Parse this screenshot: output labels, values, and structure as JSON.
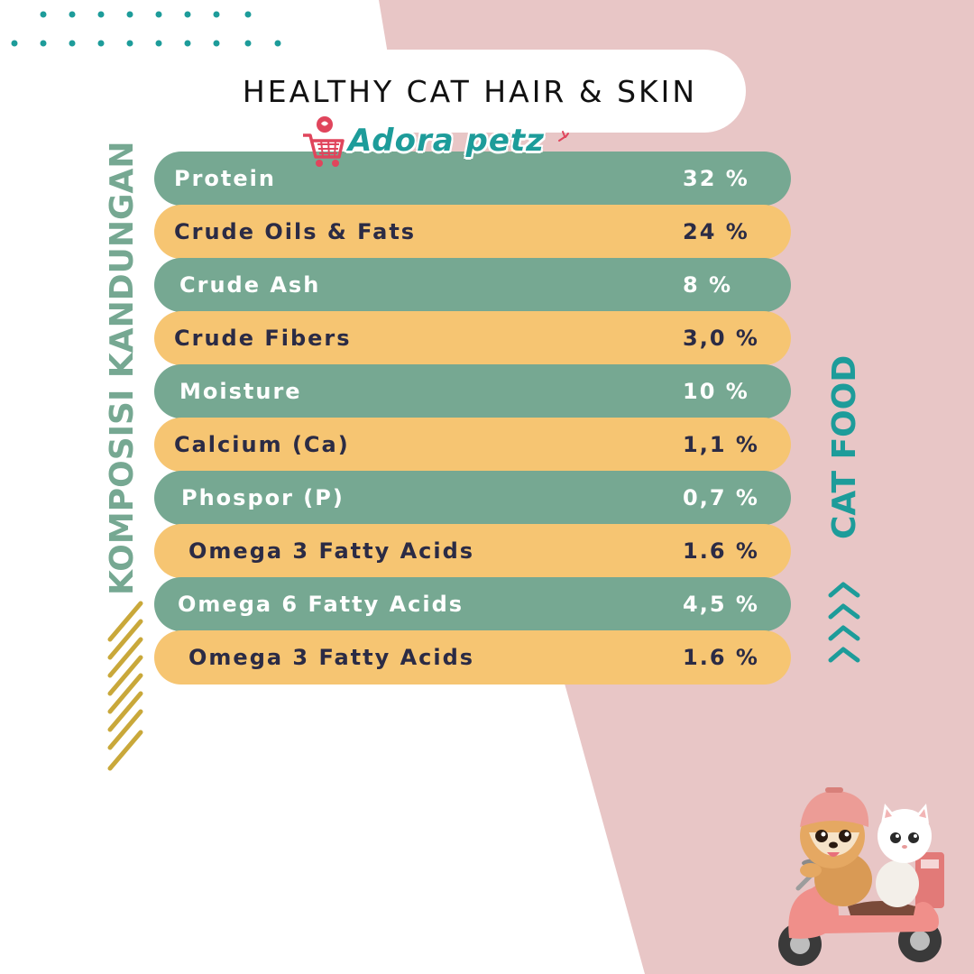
{
  "header": {
    "title": "HEALTHY CAT HAIR & SKIN"
  },
  "brand": {
    "name": "Adora petz",
    "icon": "shopping-cart-icon"
  },
  "side_labels": {
    "left": "KOMPOSISI KANDUNGAN",
    "right": "CAT FOOD"
  },
  "nutrients": [
    {
      "label": "Protein",
      "value": "32 %"
    },
    {
      "label": "Crude Oils & Fats",
      "value": "24 %"
    },
    {
      "label": "Crude Ash",
      "value": "8 %"
    },
    {
      "label": "Crude Fibers",
      "value": "3,0 %"
    },
    {
      "label": "Moisture",
      "value": "10 %"
    },
    {
      "label": "Calcium (Ca)",
      "value": "1,1 %"
    },
    {
      "label": "Phospor (P)",
      "value": "0,7 %"
    },
    {
      "label": "Omega 3 Fatty Acids",
      "value": "1.6 %"
    },
    {
      "label": "Omega 6 Fatty Acids",
      "value": "4,5 %"
    },
    {
      "label": "Omega 3 Fatty Acids",
      "value": "1.6 %"
    }
  ],
  "colors": {
    "pink": "#e8c6c6",
    "green": "#76a892",
    "yellow": "#f6c572",
    "teal": "#1d9c9a",
    "gold": "#c9a83a",
    "dark_text": "#2b2b45"
  },
  "decor": {
    "chevrons": "chevron-right-icon",
    "mascot": "dog-and-cat-scooter-illustration"
  }
}
